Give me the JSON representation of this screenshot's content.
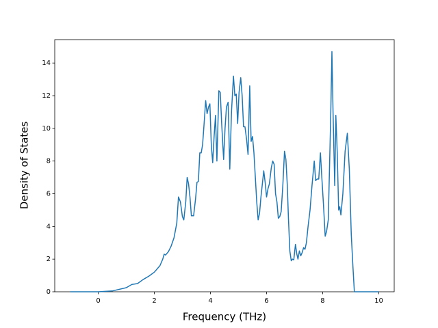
{
  "chart_data": {
    "type": "line",
    "xlabel": "Frequency (THz)",
    "ylabel": "Density of States",
    "x": [
      -1,
      0,
      0.5,
      1,
      1.2,
      1.4,
      1.6,
      1.8,
      2.0,
      2.2,
      2.3,
      2.35,
      2.4,
      2.5,
      2.6,
      2.7,
      2.8,
      2.86,
      2.93,
      3.0,
      3.05,
      3.12,
      3.17,
      3.22,
      3.27,
      3.32,
      3.4,
      3.47,
      3.52,
      3.57,
      3.62,
      3.67,
      3.72,
      3.77,
      3.83,
      3.88,
      3.93,
      3.98,
      4.03,
      4.08,
      4.13,
      4.18,
      4.23,
      4.3,
      4.35,
      4.4,
      4.47,
      4.52,
      4.57,
      4.63,
      4.69,
      4.75,
      4.82,
      4.87,
      4.92,
      4.97,
      5.02,
      5.08,
      5.13,
      5.18,
      5.23,
      5.29,
      5.34,
      5.4,
      5.45,
      5.5,
      5.55,
      5.6,
      5.65,
      5.7,
      5.75,
      5.8,
      5.9,
      5.95,
      6.0,
      6.05,
      6.1,
      6.17,
      6.22,
      6.27,
      6.32,
      6.37,
      6.42,
      6.47,
      6.52,
      6.58,
      6.64,
      6.69,
      6.74,
      6.78,
      6.83,
      6.88,
      6.92,
      6.97,
      7.03,
      7.08,
      7.12,
      7.17,
      7.22,
      7.27,
      7.32,
      7.37,
      7.42,
      7.48,
      7.55,
      7.62,
      7.7,
      7.75,
      7.8,
      7.86,
      7.92,
      7.97,
      8.03,
      8.09,
      8.14,
      8.2,
      8.25,
      8.29,
      8.33,
      8.37,
      8.43,
      8.47,
      8.52,
      8.57,
      8.61,
      8.65,
      8.72,
      8.8,
      8.88,
      8.95,
      9.02,
      9.08,
      9.13,
      9.5,
      10
    ],
    "series": [
      {
        "color": "#1f77b4",
        "values": [
          0,
          0,
          0.05,
          0.25,
          0.45,
          0.5,
          0.75,
          0.95,
          1.2,
          1.6,
          2.0,
          2.3,
          2.25,
          2.45,
          2.8,
          3.3,
          4.2,
          5.8,
          5.5,
          4.6,
          4.4,
          5.5,
          7.0,
          6.6,
          5.8,
          4.65,
          4.65,
          5.7,
          6.7,
          6.75,
          8.5,
          8.5,
          9.0,
          10.2,
          11.7,
          10.9,
          11.3,
          11.5,
          9.0,
          7.9,
          9.5,
          10.8,
          8.0,
          12.3,
          12.2,
          10.3,
          8.1,
          10.0,
          11.3,
          11.6,
          7.5,
          11.0,
          13.2,
          12.0,
          12.1,
          10.3,
          12.2,
          13.1,
          12.0,
          10.1,
          10.1,
          9.3,
          8.4,
          12.6,
          9.2,
          9.5,
          8.5,
          7.0,
          5.5,
          4.4,
          4.8,
          5.8,
          7.4,
          6.7,
          5.8,
          6.3,
          6.6,
          7.6,
          8.0,
          7.8,
          6.0,
          5.5,
          4.5,
          4.6,
          4.9,
          6.5,
          8.6,
          8.1,
          6.5,
          4.5,
          2.5,
          1.9,
          2.0,
          1.95,
          2.9,
          2.3,
          2.0,
          2.5,
          2.2,
          2.4,
          2.7,
          2.6,
          3.0,
          4.0,
          5.0,
          6.5,
          8.0,
          6.8,
          6.9,
          6.9,
          8.5,
          7.0,
          5.3,
          3.4,
          3.7,
          4.4,
          8.0,
          11.0,
          14.7,
          11.0,
          6.5,
          10.8,
          8.5,
          5.0,
          5.2,
          4.7,
          6.0,
          8.6,
          9.7,
          7.5,
          3.5,
          1.5,
          0,
          0,
          0
        ]
      }
    ],
    "xlim": [
      -1.55,
      10.55
    ],
    "ylim": [
      0,
      15.43
    ],
    "xticks": [
      0,
      2,
      4,
      6,
      8,
      10
    ],
    "yticks": [
      0,
      2,
      4,
      6,
      8,
      10,
      12,
      14
    ]
  }
}
